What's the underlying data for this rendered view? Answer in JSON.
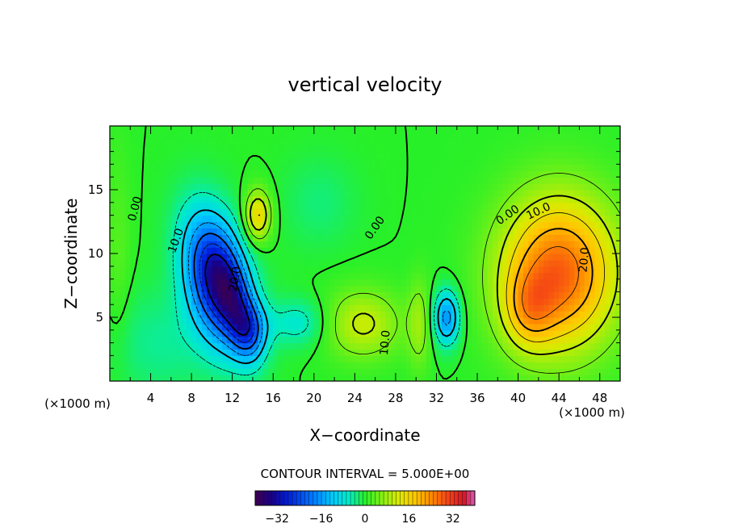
{
  "chart_data": {
    "type": "contour",
    "title": "vertical velocity",
    "xlabel": "X−coordinate",
    "ylabel": "Z−coordinate",
    "x_unit": "(×1000 m)",
    "y_unit": "(×1000 m)",
    "xlim": [
      0,
      50
    ],
    "ylim": [
      0,
      20
    ],
    "x_ticks": [
      4,
      8,
      12,
      16,
      20,
      24,
      28,
      32,
      36,
      40,
      44,
      48
    ],
    "y_ticks": [
      5,
      10,
      15
    ],
    "x_tick_labels": [
      "4",
      "8",
      "12",
      "16",
      "20",
      "24",
      "28",
      "32",
      "36",
      "40",
      "44",
      "48"
    ],
    "y_tick_labels": [
      "5",
      "10",
      "15"
    ],
    "contour_interval_text": "CONTOUR INTERVAL = 5.000E+00",
    "contour_interval": 5.0,
    "contour_labels": [
      {
        "text": "0.00",
        "x": 2.5,
        "z": 13.5,
        "rotate": -75
      },
      {
        "text": "10.0",
        "x": 6.5,
        "z": 11.0,
        "rotate": -70
      },
      {
        "text": "20.0",
        "x": 12.3,
        "z": 8.0,
        "rotate": -80
      },
      {
        "text": "0.00",
        "x": 26.0,
        "z": 12.0,
        "rotate": -55
      },
      {
        "text": "10.0",
        "x": 27.0,
        "z": 3.0,
        "rotate": -85
      },
      {
        "text": "0.00",
        "x": 39.0,
        "z": 13.0,
        "rotate": -35
      },
      {
        "text": "10.0",
        "x": 42.0,
        "z": 13.3,
        "rotate": -25
      },
      {
        "text": "20.0",
        "x": 46.5,
        "z": 9.5,
        "rotate": -85
      }
    ],
    "features": [
      {
        "x": 10.5,
        "z": 8.0,
        "sx": 2.0,
        "sz": 3.6,
        "amp": -33,
        "rot": -0.3
      },
      {
        "x": 12.5,
        "z": 5.5,
        "sx": 1.1,
        "sz": 2.6,
        "amp": -12,
        "rot": -0.35
      },
      {
        "x": 13.8,
        "z": 4.0,
        "sx": 1.2,
        "sz": 1.5,
        "amp": -12,
        "rot": 0.0
      },
      {
        "x": 14.5,
        "z": 13.0,
        "sx": 0.9,
        "sz": 1.4,
        "amp": 16,
        "rot": 0.0
      },
      {
        "x": 18.5,
        "z": 4.6,
        "sx": 2.0,
        "sz": 1.3,
        "amp": -7,
        "rot": 0.0
      },
      {
        "x": 33.0,
        "z": 5.0,
        "sx": 0.9,
        "sz": 1.5,
        "amp": -17,
        "rot": 0.0
      },
      {
        "x": 24.8,
        "z": 4.5,
        "sx": 2.6,
        "sz": 1.9,
        "amp": 11,
        "rot": 0.0
      },
      {
        "x": 30.3,
        "z": 4.5,
        "sx": 0.8,
        "sz": 2.5,
        "amp": 7,
        "rot": 0.0
      },
      {
        "x": 44.0,
        "z": 8.5,
        "sx": 4.0,
        "sz": 4.2,
        "amp": 28,
        "rot": 0.0
      },
      {
        "x": 41.0,
        "z": 5.5,
        "sx": 1.7,
        "sz": 2.1,
        "amp": 10,
        "rot": 0.0
      },
      {
        "x": 20.5,
        "z": 14.0,
        "sx": 2.5,
        "sz": 2.5,
        "amp": -3,
        "rot": 0.0
      },
      {
        "x": 5.0,
        "z": 3.0,
        "sx": 4.0,
        "sz": 3.0,
        "amp": -4,
        "rot": 0.0
      },
      {
        "x": 0.8,
        "z": 10.0,
        "sx": 0.9,
        "sz": 6.0,
        "amp": 3,
        "rot": 0.0
      }
    ],
    "colorbar": {
      "min": -40,
      "max": 40,
      "tick_values": [
        -32,
        -16,
        0,
        16,
        32
      ],
      "tick_labels": [
        "−32",
        "−16",
        "0",
        "16",
        "32"
      ],
      "segments": 53
    }
  }
}
